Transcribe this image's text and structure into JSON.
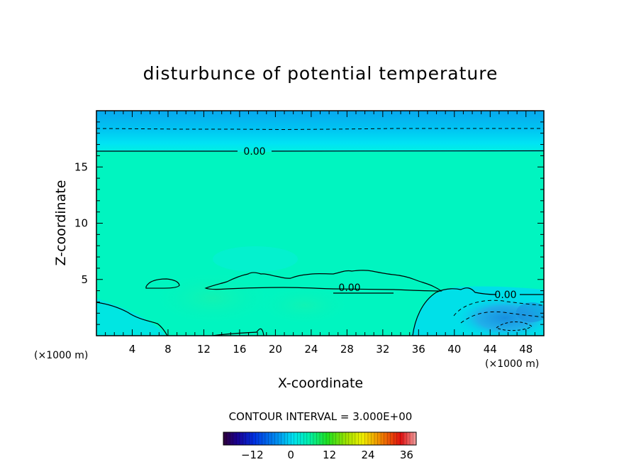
{
  "chart_data": {
    "type": "heatmap",
    "title": "disturbunce of potential temperature",
    "xlabel": "X-coordinate",
    "ylabel": "Z-coordinate",
    "x_unit": "(×1000 m)",
    "xlim": [
      0,
      50
    ],
    "ylim": [
      0,
      20
    ],
    "x_ticks": [
      4,
      8,
      12,
      16,
      20,
      24,
      28,
      32,
      36,
      40,
      44,
      48
    ],
    "y_ticks": [
      5,
      10,
      15
    ],
    "contour_interval_text": "CONTOUR INTERVAL = 3.000E+00",
    "contour_labels": [
      {
        "text": "0.00",
        "x": 16.8,
        "z": 16.3
      },
      {
        "text": "0.00",
        "x": 28.2,
        "z": 4.4
      },
      {
        "text": "0.00",
        "x": 45.7,
        "z": 3.7
      }
    ],
    "colorbar": {
      "ticks": [
        -12,
        0,
        12,
        24,
        36
      ],
      "range": [
        -21,
        39
      ]
    },
    "colors": {
      "background_field": "#00f5c0",
      "top_layer": "#00b8f0",
      "near_surface": "#00e5e8",
      "negative_blob": "#1aa8e8"
    }
  }
}
